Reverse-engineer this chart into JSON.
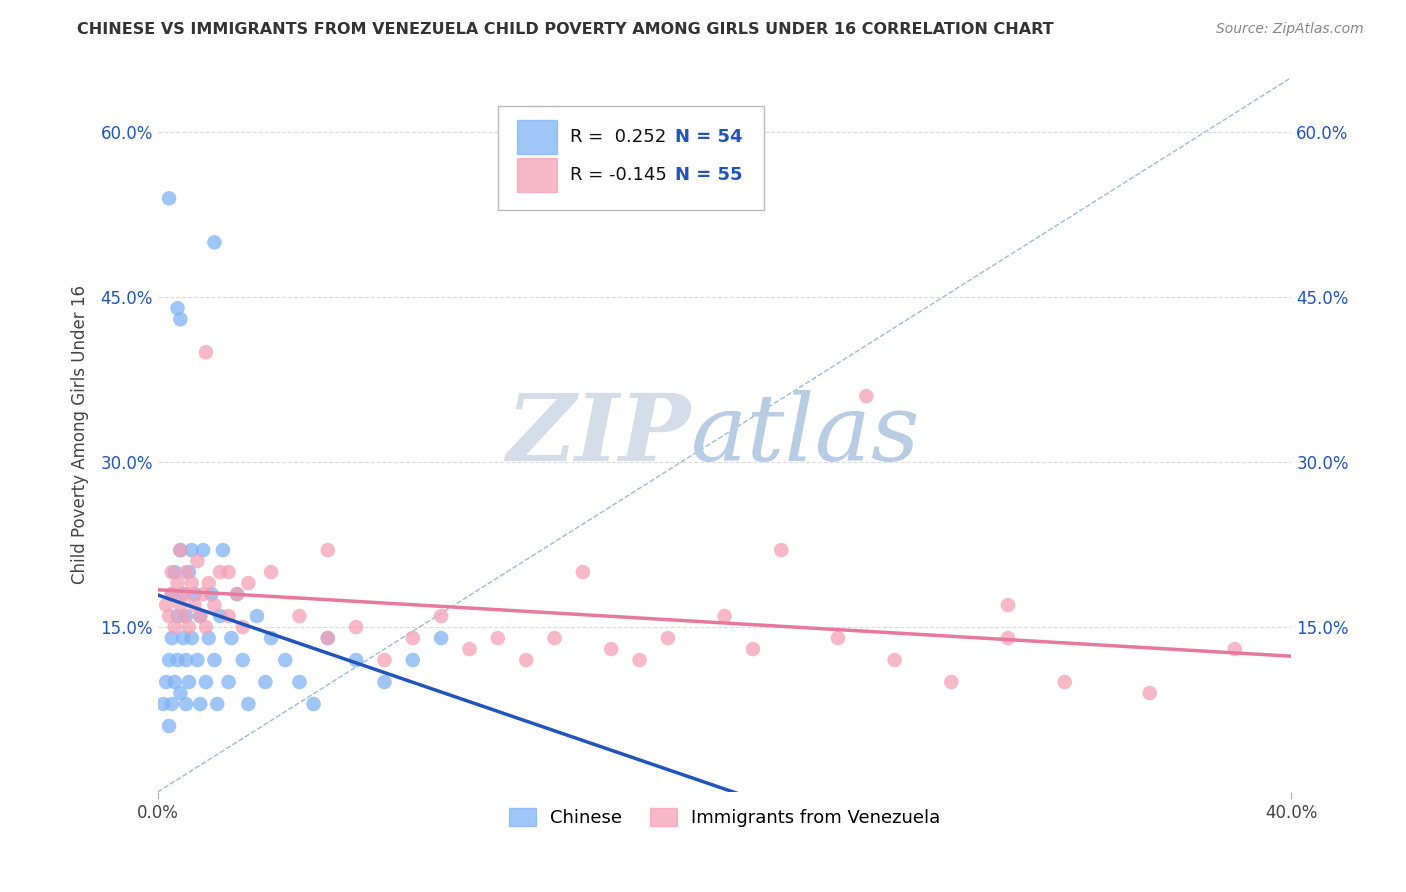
{
  "title": "CHINESE VS IMMIGRANTS FROM VENEZUELA CHILD POVERTY AMONG GIRLS UNDER 16 CORRELATION CHART",
  "source": "Source: ZipAtlas.com",
  "ylabel": "Child Poverty Among Girls Under 16",
  "xlim": [
    0.0,
    0.4
  ],
  "ylim": [
    0.0,
    0.65
  ],
  "ytick_positions": [
    0.15,
    0.3,
    0.45,
    0.6
  ],
  "ytick_labels": [
    "15.0%",
    "30.0%",
    "45.0%",
    "60.0%"
  ],
  "chinese_color": "#7fb3f5",
  "venezuela_color": "#f5a0b5",
  "trend_chinese_color": "#2255bb",
  "trend_venezuela_color": "#e8799a",
  "ref_line_color": "#99bbdd",
  "r_chinese": 0.252,
  "n_chinese": 54,
  "r_venezuela": -0.145,
  "n_venezuela": 55,
  "background_color": "#ffffff",
  "grid_color": "#cccccc",
  "watermark_color": "#ccd9ea"
}
